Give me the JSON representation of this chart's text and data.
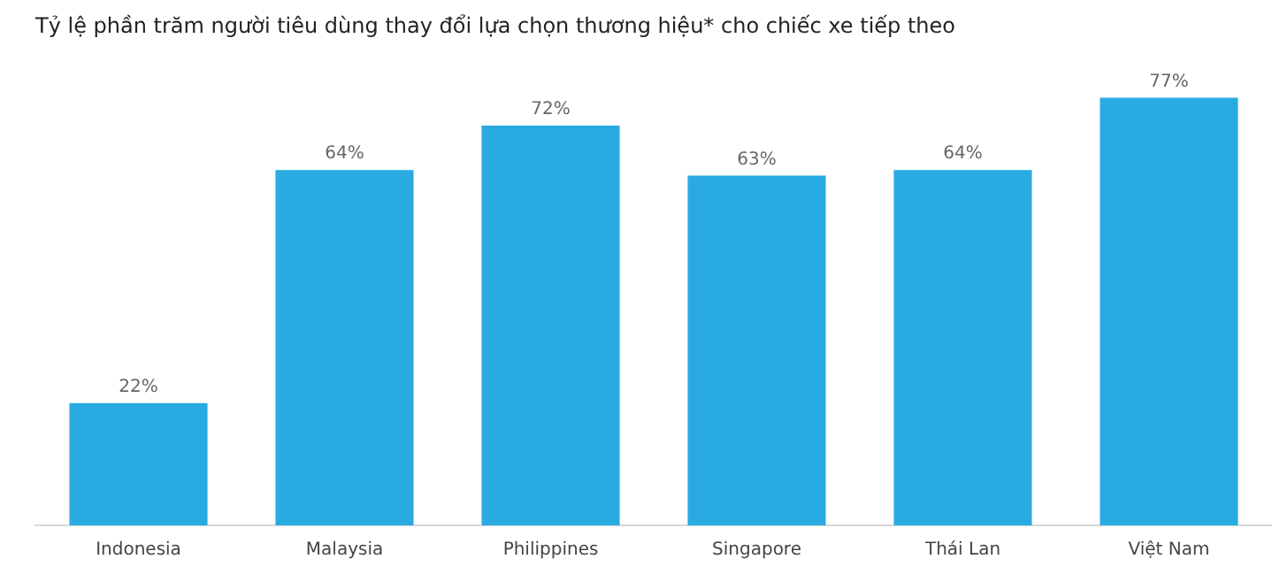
{
  "chart_data": {
    "type": "bar",
    "title": "Tỷ lệ phần trăm người tiêu dùng thay đổi lựa chọn thương hiệu* cho chiếc xe tiếp theo",
    "categories": [
      "Indonesia",
      "Malaysia",
      "Philippines",
      "Singapore",
      "Thái Lan",
      "Việt Nam"
    ],
    "values": [
      22,
      64,
      72,
      63,
      64,
      77
    ],
    "value_labels": [
      "22%",
      "64%",
      "72%",
      "63%",
      "64%",
      "77%"
    ],
    "color": "#29abe2",
    "grid": false,
    "legend": false
  }
}
